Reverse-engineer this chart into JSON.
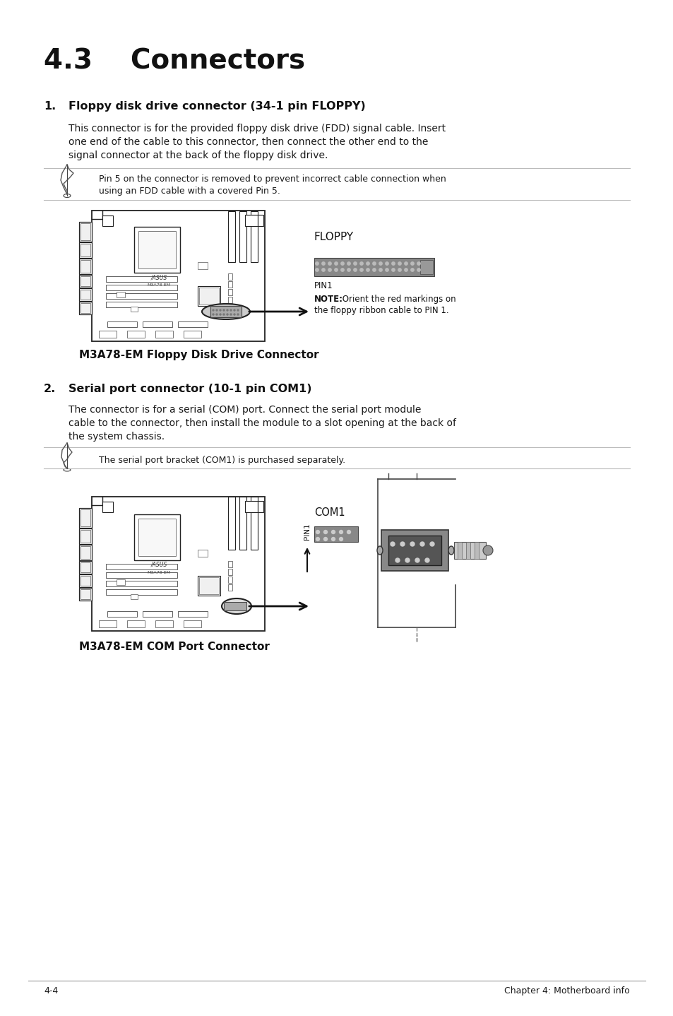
{
  "page_title": "4.3    Connectors",
  "section1_num": "1.",
  "section1_heading": "Floppy disk drive connector (34-1 pin FLOPPY)",
  "section1_body_lines": [
    "This connector is for the provided floppy disk drive (FDD) signal cable. Insert",
    "one end of the cable to this connector, then connect the other end to the",
    "signal connector at the back of the floppy disk drive."
  ],
  "note1_text_lines": [
    "Pin 5 on the connector is removed to prevent incorrect cable connection when",
    "using an FDD cable with a covered Pin 5."
  ],
  "floppy_label": "FLOPPY",
  "pin1_label1": "PIN1",
  "note1_bold": "NOTE:",
  "note1_rest": " Orient the red markings on",
  "note1_line2": "the floppy ribbon cable to PIN 1.",
  "caption1": "M3A78-EM Floppy Disk Drive Connector",
  "section2_num": "2.",
  "section2_heading": "Serial port connector (10-1 pin COM1)",
  "section2_body_lines": [
    "The connector is for a serial (COM) port. Connect the serial port module",
    "cable to the connector, then install the module to a slot opening at the back of",
    "the system chassis."
  ],
  "note2_text": "The serial port bracket (COM1) is purchased separately.",
  "com1_label": "COM1",
  "pin1_label2": "PIN1",
  "caption2": "M3A78-EM COM Port Connector",
  "footer_left": "4-4",
  "footer_right": "Chapter 4: Motherboard info",
  "bg_color": "#ffffff",
  "text_color": "#1a1a1a",
  "heading_color": "#000000",
  "gray_line": "#bbbbbb",
  "board_edge": "#222222",
  "board_comp": "#333333"
}
